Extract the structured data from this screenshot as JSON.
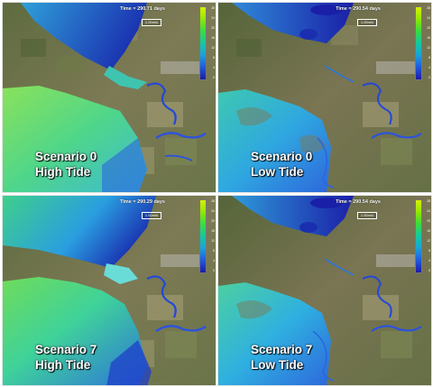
{
  "panels": [
    {
      "scenario": "Scenario 0",
      "tide": "High Tide",
      "time": "Time = 290.71 days",
      "scale": "1.00m/s"
    },
    {
      "scenario": "Scenario 0",
      "tide": "Low Tide",
      "time": "Time = 290.54 days",
      "scale": "1.00m/s"
    },
    {
      "scenario": "Scenario 7",
      "tide": "High Tide",
      "time": "Time = 290.29 days",
      "scale": "1.00m/s"
    },
    {
      "scenario": "Scenario 7",
      "tide": "Low Tide",
      "time": "Time = 290.54 days",
      "scale": "1.00m/s"
    }
  ],
  "colorbar": {
    "ticks": [
      "28",
      "26",
      "24",
      "22",
      "20",
      "18",
      "16",
      "14",
      "12",
      "10",
      "8",
      "6",
      "4",
      "2",
      "0"
    ],
    "colors": [
      "#d6f000",
      "#9be700",
      "#3fdc3a",
      "#14c8a0",
      "#1aa4d8",
      "#1f5fe0",
      "#1e1aa8"
    ]
  }
}
